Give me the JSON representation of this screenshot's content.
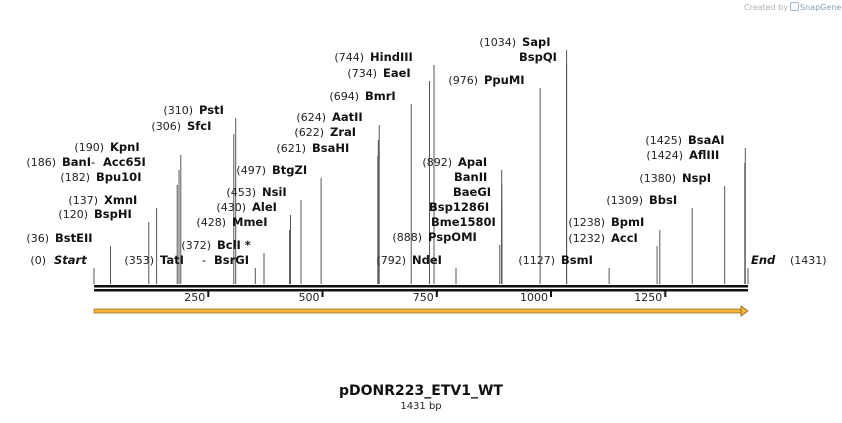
{
  "credit": {
    "prefix": "Created by",
    "brand": "SnapGene"
  },
  "plasmid": {
    "name": "pDONR223_ETV1_WT",
    "length_label": "1431 bp",
    "length_bp": 1431
  },
  "axis": {
    "ticks": [
      250,
      500,
      750,
      1000,
      1250
    ]
  },
  "ends": {
    "start": {
      "pos": "(0)",
      "label": "Start"
    },
    "end": {
      "pos": "(1431)",
      "label": "End"
    }
  },
  "sites": [
    {
      "pos": "(36)",
      "name": "BstEII",
      "bp": 36
    },
    {
      "pos": "(120)",
      "name": "BspHI",
      "bp": 120
    },
    {
      "pos": "(137)",
      "name": "XmnI",
      "bp": 137
    },
    {
      "pos": "(182)",
      "name": "Bpu10I",
      "bp": 182
    },
    {
      "pos": "(186)",
      "name": "BanI",
      "extra": "Acc65I",
      "bp": 186
    },
    {
      "pos": "(190)",
      "name": "KpnI",
      "bp": 190
    },
    {
      "pos": "(306)",
      "name": "SfcI",
      "bp": 306
    },
    {
      "pos": "(310)",
      "name": "PstI",
      "bp": 310
    },
    {
      "pos": "(353)",
      "name": "TatI",
      "extra": "BsrGI",
      "bp": 353
    },
    {
      "pos": "(372)",
      "name": "BclI *",
      "bp": 372
    },
    {
      "pos": "(428)",
      "name": "MmeI",
      "bp": 428
    },
    {
      "pos": "(430)",
      "name": "AleI",
      "bp": 430
    },
    {
      "pos": "(453)",
      "name": "NsiI",
      "bp": 453
    },
    {
      "pos": "(497)",
      "name": "BtgZI",
      "bp": 497
    },
    {
      "pos": "(621)",
      "name": "BsaHI",
      "bp": 621
    },
    {
      "pos": "(622)",
      "name": "ZraI",
      "bp": 622
    },
    {
      "pos": "(624)",
      "name": "AatII",
      "bp": 624
    },
    {
      "pos": "(694)",
      "name": "BmrI",
      "bp": 694
    },
    {
      "pos": "(734)",
      "name": "EaeI",
      "bp": 734
    },
    {
      "pos": "(744)",
      "name": "HindIII",
      "bp": 744
    },
    {
      "pos": "(792)",
      "name": "NdeI",
      "bp": 792
    },
    {
      "pos": "(888)",
      "name": "PspOMI",
      "bp": 888
    },
    {
      "pos": "",
      "name": "Bme1580I",
      "bp": 892
    },
    {
      "pos": "",
      "name": "Bsp1286I",
      "bp": 892
    },
    {
      "pos": "",
      "name": "BaeGI",
      "bp": 892
    },
    {
      "pos": "",
      "name": "BanII",
      "bp": 892
    },
    {
      "pos": "(892)",
      "name": "ApaI",
      "bp": 892
    },
    {
      "pos": "(976)",
      "name": "PpuMI",
      "bp": 976
    },
    {
      "pos": "",
      "name": "BspQI",
      "bp": 1034
    },
    {
      "pos": "(1034)",
      "name": "SapI",
      "bp": 1034
    },
    {
      "pos": "(1127)",
      "name": "BsmI",
      "bp": 1127
    },
    {
      "pos": "(1232)",
      "name": "AccI",
      "bp": 1232
    },
    {
      "pos": "(1238)",
      "name": "BpmI",
      "bp": 1238
    },
    {
      "pos": "(1309)",
      "name": "BbsI",
      "bp": 1309
    },
    {
      "pos": "(1380)",
      "name": "NspI",
      "bp": 1380
    },
    {
      "pos": "(1424)",
      "name": "AflIII",
      "bp": 1424
    },
    {
      "pos": "(1425)",
      "name": "BsaAI",
      "bp": 1425
    }
  ],
  "feature": {
    "color": "#f4b63f",
    "outline": "#8a6212"
  }
}
